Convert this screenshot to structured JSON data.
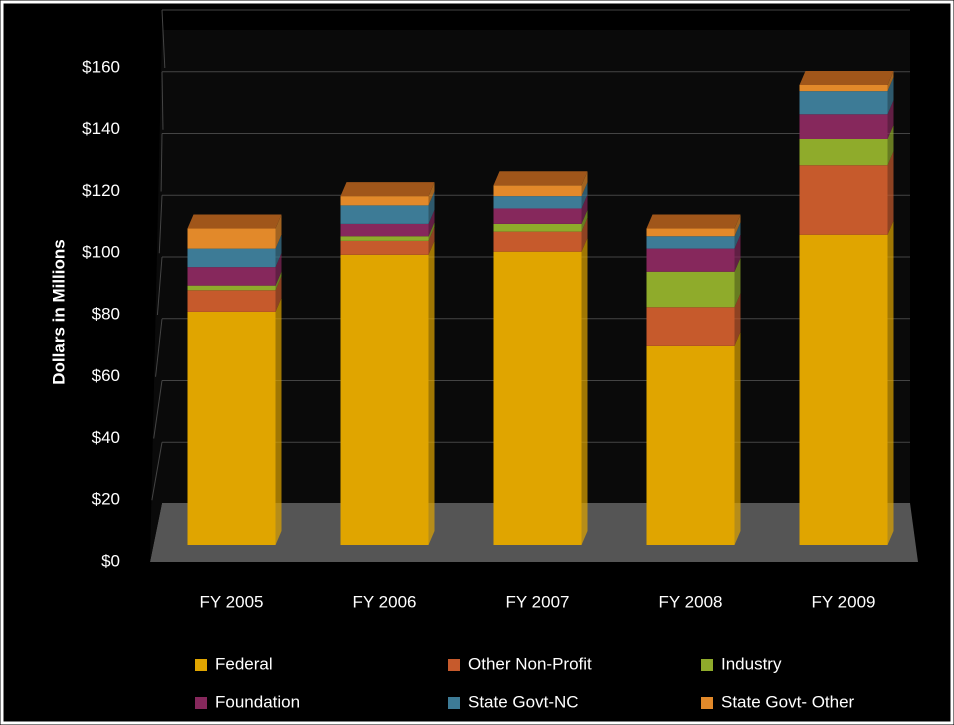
{
  "chart_data": {
    "type": "bar",
    "stacked": true,
    "y_label": "Dollars in Millions",
    "categories": [
      "FY 2005",
      "FY 2006",
      "FY 2007",
      "FY 2008",
      "FY 2009"
    ],
    "series": [
      {
        "name": "Federal",
        "color": "#e0a500",
        "values": [
          75.5,
          94,
          95,
          64.5,
          100.5
        ]
      },
      {
        "name": "Other Non-Profit",
        "color": "#c65a2c",
        "values": [
          7,
          4.5,
          6.5,
          12.5,
          22.5
        ]
      },
      {
        "name": "Industry",
        "color": "#8fab2b",
        "values": [
          1.5,
          1.5,
          2.5,
          11.5,
          8.5
        ]
      },
      {
        "name": "Foundation",
        "color": "#86285c",
        "values": [
          6,
          4,
          5,
          7.5,
          8
        ]
      },
      {
        "name": "State Govt-NC",
        "color": "#3d7b96",
        "values": [
          6,
          6,
          4,
          4,
          7.5
        ]
      },
      {
        "name": "State Govt- Other",
        "color": "#e2892a",
        "values": [
          6.5,
          3,
          3.5,
          2.5,
          2
        ]
      }
    ],
    "ylim": [
      0,
      160
    ],
    "yticks": [
      {
        "value": 0,
        "label": "$0"
      },
      {
        "value": 20,
        "label": "$20"
      },
      {
        "value": 40,
        "label": "$40"
      },
      {
        "value": 60,
        "label": "$60"
      },
      {
        "value": 80,
        "label": "$80"
      },
      {
        "value": 100,
        "label": "$100"
      },
      {
        "value": 120,
        "label": "$120"
      },
      {
        "value": 140,
        "label": "$140"
      },
      {
        "value": 160,
        "label": "$160"
      }
    ],
    "grid": true
  }
}
